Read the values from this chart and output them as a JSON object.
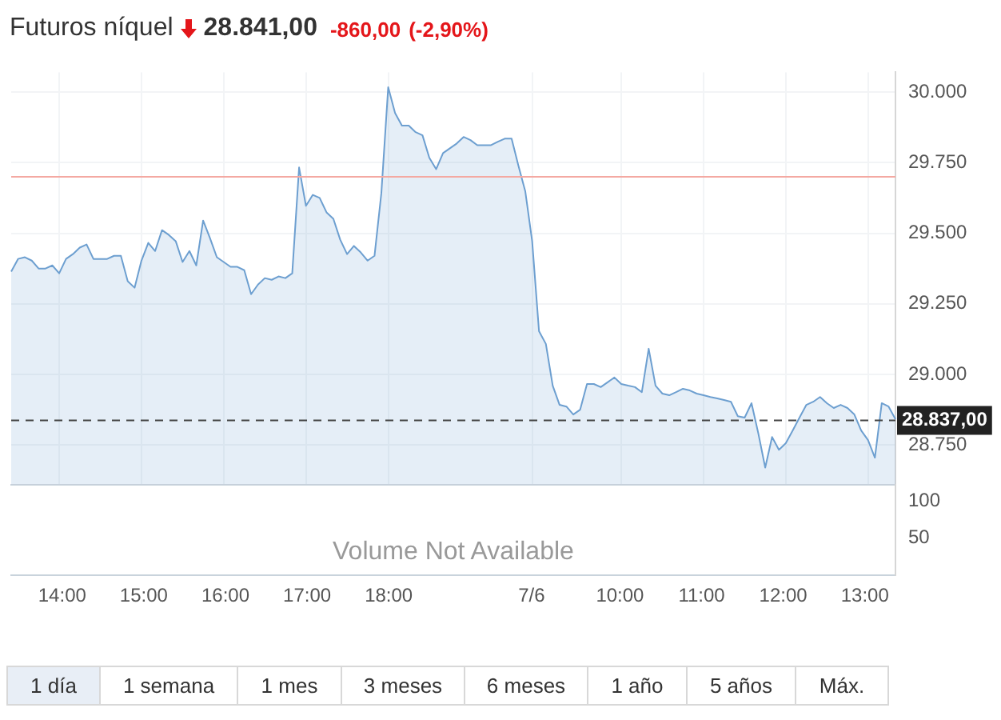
{
  "chart_data": [
    {
      "type": "area",
      "title": "Futuros níquel",
      "annotations": [
        "28.841,00",
        "-860,00",
        "(-2,90%)"
      ],
      "categories": [
        null,
        null,
        null,
        null,
        null,
        null,
        null,
        null,
        null,
        null,
        null,
        null,
        null,
        null,
        null,
        null,
        null,
        null,
        null,
        null,
        null,
        null,
        null,
        null,
        null,
        null,
        null,
        null,
        null,
        null,
        null,
        null,
        null,
        null,
        null,
        null,
        null,
        null,
        null,
        null,
        null,
        null,
        null,
        null,
        null,
        null,
        null,
        null,
        null,
        null,
        null,
        null,
        null,
        null,
        null,
        null,
        null,
        null,
        null,
        null,
        null,
        null,
        null,
        null,
        null,
        null,
        null,
        null,
        null,
        null,
        null,
        null,
        null,
        null,
        null,
        null,
        null,
        null,
        null,
        null,
        null,
        null,
        null,
        null,
        null,
        null,
        null,
        null,
        null,
        null,
        null,
        null,
        null,
        null,
        null,
        null,
        null,
        null,
        null,
        null,
        null,
        null,
        null,
        null,
        null,
        null,
        null,
        null,
        null,
        null,
        null,
        null,
        null,
        null,
        null,
        null,
        null,
        null,
        null,
        null,
        null,
        null,
        null,
        null,
        null,
        null,
        null,
        null,
        null,
        null
      ],
      "series": [
        {
          "color": "#6d9fd0",
          "values": [
            29364,
            29409,
            29415,
            29403,
            29375,
            29375,
            29386,
            29358,
            29409,
            29426,
            29449,
            29460,
            29409,
            29409,
            29409,
            29420,
            29420,
            29330,
            29307,
            29403,
            29466,
            29437,
            29511,
            29494,
            29472,
            29398,
            29437,
            29386,
            29545,
            29483,
            29415,
            29398,
            29381,
            29381,
            29369,
            29284,
            29318,
            29341,
            29335,
            29347,
            29341,
            29358,
            29733,
            29597,
            29636,
            29625,
            29574,
            29551,
            29477,
            29426,
            29455,
            29432,
            29403,
            29420,
            29642,
            30017,
            29926,
            29881,
            29881,
            29858,
            29847,
            29767,
            29727,
            29784,
            29801,
            29818,
            29841,
            29830,
            29812,
            29812,
            29812,
            29824,
            29835,
            29835,
            29739,
            29648,
            29472,
            29153,
            29108,
            28960,
            28892,
            28886,
            28858,
            28875,
            28966,
            28966,
            28955,
            28972,
            28989,
            28966,
            28960,
            28955,
            28937,
            29091,
            28960,
            28932,
            28926,
            28937,
            28949,
            28943,
            28932,
            28926,
            28920,
            28915,
            28909,
            28903,
            28852,
            28847,
            28898,
            28790,
            28670,
            28778,
            28733,
            28756,
            28801,
            28847,
            28892,
            28903,
            28920,
            28898,
            28881,
            28892,
            28881,
            28858,
            28801,
            28767,
            28705,
            28898,
            28886,
            28841
          ]
        }
      ],
      "ylim": [
        28610,
        30070
      ],
      "yticks": [
        {
          "value": 28750,
          "label": "28.750"
        },
        {
          "value": 29000,
          "label": "29.000"
        },
        {
          "value": 29250,
          "label": "29.250"
        },
        {
          "value": 29500,
          "label": "29.500"
        },
        {
          "value": 29750,
          "label": "29.750"
        },
        {
          "value": 30000,
          "label": "30.000"
        }
      ],
      "ref_lines": [
        {
          "axis": "y",
          "value": 29700,
          "color": "#f4a9a2"
        },
        {
          "axis": "y",
          "value": 28837,
          "label": "28.837,00",
          "color": "#444444",
          "line_style": "dashed"
        }
      ],
      "grid": true,
      "legend": false,
      "marker": "none",
      "tick_labels": "y"
    },
    {
      "type": "bar",
      "annotations": [
        "Volume Not Available",
        "1 día",
        "1 semana",
        "1 mes",
        "3 meses",
        "6 meses",
        "1 año",
        "5 años",
        "Máx."
      ],
      "categories": [
        null,
        null,
        null,
        null,
        null,
        null,
        null,
        "14:00",
        null,
        null,
        null,
        null,
        null,
        null,
        null,
        null,
        null,
        null,
        null,
        "15:00",
        null,
        null,
        null,
        null,
        null,
        null,
        null,
        null,
        null,
        null,
        null,
        "16:00",
        null,
        null,
        null,
        null,
        null,
        null,
        null,
        null,
        null,
        null,
        null,
        "17:00",
        null,
        null,
        null,
        null,
        null,
        null,
        null,
        null,
        null,
        null,
        null,
        "18:00",
        null,
        null,
        null,
        null,
        null,
        null,
        null,
        null,
        null,
        null,
        null,
        null,
        null,
        null,
        null,
        null,
        null,
        null,
        null,
        null,
        "7/6",
        null,
        null,
        null,
        null,
        null,
        null,
        null,
        null,
        null,
        null,
        null,
        null,
        "10:00",
        null,
        null,
        null,
        null,
        null,
        null,
        null,
        null,
        null,
        null,
        null,
        "11:00",
        null,
        null,
        null,
        null,
        null,
        null,
        null,
        null,
        null,
        null,
        null,
        "12:00",
        null,
        null,
        null,
        null,
        null,
        null,
        null,
        null,
        null,
        null,
        null,
        "13:00",
        null,
        null,
        null,
        null
      ],
      "values": [
        null,
        null,
        null,
        null,
        null,
        null,
        null,
        null,
        null,
        null,
        null,
        null,
        null,
        null,
        null,
        null,
        null,
        null,
        null,
        null,
        null,
        null,
        null,
        null,
        null,
        null,
        null,
        null,
        null,
        null,
        null,
        null,
        null,
        null,
        null,
        null,
        null,
        null,
        null,
        null,
        null,
        null,
        null,
        null,
        null,
        null,
        null,
        null,
        null,
        null,
        null,
        null,
        null,
        null,
        null,
        null,
        null,
        null,
        null,
        null,
        null,
        null,
        null,
        null,
        null,
        null,
        null,
        null,
        null,
        null,
        null,
        null,
        null,
        null,
        null,
        null,
        null,
        null,
        null,
        null,
        null,
        null,
        null,
        null,
        null,
        null,
        null,
        null,
        null,
        null,
        null,
        null,
        null,
        null,
        null,
        null,
        null,
        null,
        null,
        null,
        null,
        null,
        null,
        null,
        null,
        null,
        null,
        null,
        null,
        null,
        null,
        null,
        null,
        null,
        null,
        null,
        null,
        null,
        null,
        null,
        null,
        null,
        null,
        null,
        null,
        null,
        null,
        null,
        null,
        null
      ],
      "ylim": [
        0,
        121
      ],
      "yticks": [
        50,
        100
      ],
      "grid": false,
      "legend": false
    }
  ]
}
